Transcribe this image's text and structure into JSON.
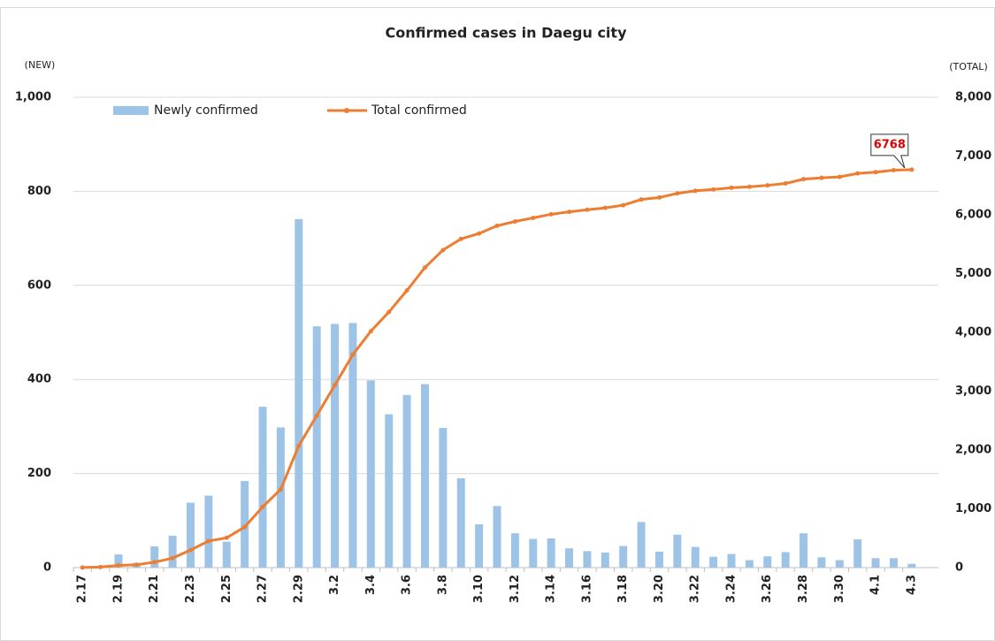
{
  "chart_data": {
    "type": "bar-line",
    "title": "Confirmed cases in Daegu city",
    "y_label": "(NEW)",
    "y2_label": "(TOTAL)",
    "categories": [
      "2.17",
      null,
      "2.19",
      null,
      "2.21",
      null,
      "2.23",
      null,
      "2.25",
      null,
      "2.27",
      null,
      "2.29",
      null,
      "3.2",
      null,
      "3.4",
      null,
      "3.6",
      null,
      "3.8",
      null,
      "3.10",
      null,
      "3.12",
      null,
      "3.14",
      null,
      "3.16",
      null,
      "3.18",
      null,
      "3.20",
      null,
      "3.22",
      null,
      "3.24",
      null,
      "3.26",
      null,
      "3.28",
      null,
      "3.30",
      null,
      "4.1",
      null,
      "4.3"
    ],
    "series": [
      {
        "name": "Newly confirmed",
        "type": "bar",
        "color": "#9dc3e6",
        "values": [
          0,
          0,
          28,
          10,
          45,
          68,
          138,
          153,
          55,
          184,
          342,
          298,
          741,
          513,
          518,
          520,
          398,
          326,
          367,
          390,
          297,
          190,
          92,
          131,
          73,
          61,
          62,
          41,
          35,
          32,
          46,
          97,
          34,
          70,
          44,
          23,
          29,
          16,
          24,
          33,
          73,
          22,
          16,
          60,
          20,
          20,
          8
        ]
      },
      {
        "name": "Total confirmed",
        "type": "line",
        "axis": "y2",
        "color": "#ed7d31",
        "values": [
          1,
          10,
          38,
          48,
          93,
          161,
          299,
          452,
          507,
          691,
          1033,
          1331,
          2072,
          2585,
          3103,
          3623,
          4021,
          4347,
          4714,
          5104,
          5401,
          5591,
          5683,
          5814,
          5887,
          5948,
          6010,
          6051,
          6086,
          6118,
          6164,
          6261,
          6295,
          6365,
          6409,
          6432,
          6461,
          6477,
          6501,
          6534,
          6607,
          6629,
          6645,
          6705,
          6725,
          6760,
          6768
        ],
        "value_labels": [
          null,
          null,
          null,
          null,
          null,
          null,
          null,
          null,
          null,
          null,
          null,
          null,
          null,
          null,
          null,
          null,
          null,
          null,
          null,
          null,
          null,
          null,
          null,
          null,
          null,
          null,
          null,
          null,
          null,
          null,
          null,
          null,
          null,
          null,
          null,
          null,
          null,
          null,
          null,
          null,
          null,
          null,
          null,
          null,
          null,
          null,
          "6768"
        ]
      }
    ],
    "ylim": [
      0,
      1000
    ],
    "yticks": [
      0,
      200,
      400,
      600,
      800,
      {
        "value": 1000,
        "label": "1,000"
      }
    ],
    "y2lim": [
      0,
      8000
    ],
    "y2ticks": [
      0,
      {
        "value": 1000,
        "label": "1,000"
      },
      {
        "value": 2000,
        "label": "2,000"
      },
      {
        "value": 3000,
        "label": "3,000"
      },
      {
        "value": 4000,
        "label": "4,000"
      },
      {
        "value": 5000,
        "label": "5,000"
      },
      {
        "value": 6000,
        "label": "6,000"
      },
      {
        "value": 7000,
        "label": "7,000"
      },
      {
        "value": 8000,
        "label": "8,000"
      }
    ],
    "grid": true
  }
}
